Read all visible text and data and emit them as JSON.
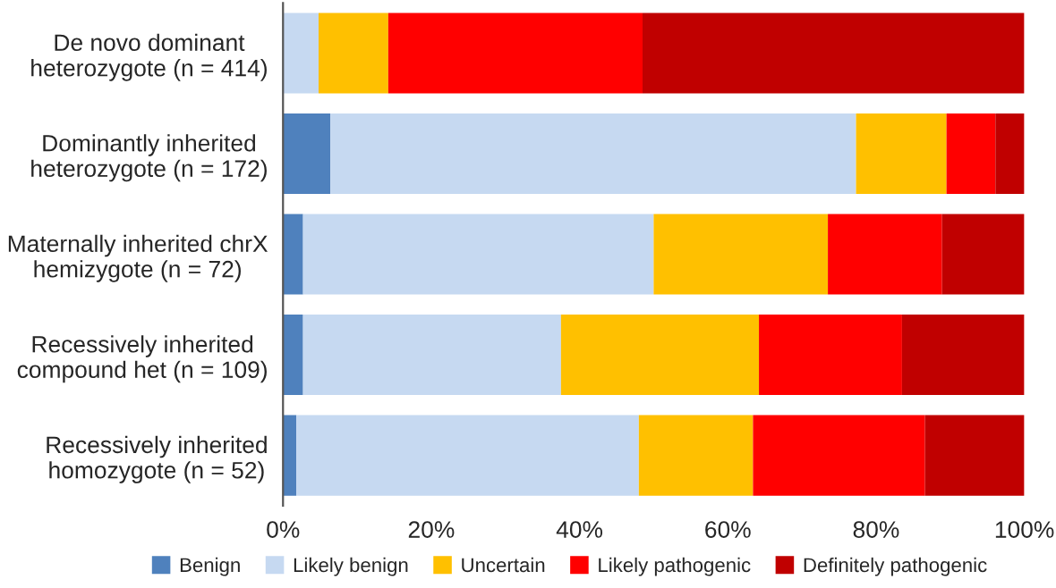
{
  "chart_data": {
    "type": "bar",
    "orientation": "horizontal",
    "stacked": true,
    "categories": [
      "De novo dominant\nheterozygote (n = 414)",
      "Dominantly inherited\nheterozygote (n = 172)",
      "Maternally inherited chrX\nhemizygote (n = 72)",
      "Recessively inherited\ncompound het (n = 109)",
      "Recessively inherited\nhomozygote (n = 52)"
    ],
    "series": [
      {
        "name": "Benign",
        "color": "#4f81bd",
        "values": [
          0,
          6.4,
          2.7,
          2.7,
          1.8
        ]
      },
      {
        "name": "Likely benign",
        "color": "#c6d9f1",
        "values": [
          4.8,
          70.9,
          47.3,
          34.8,
          46.2
        ]
      },
      {
        "name": "Uncertain",
        "color": "#ffc000",
        "values": [
          9.4,
          12.2,
          23.5,
          26.7,
          15.4
        ]
      },
      {
        "name": "Likely pathogenic",
        "color": "#ff0000",
        "values": [
          34.3,
          6.6,
          15.4,
          19.3,
          23.2
        ]
      },
      {
        "name": "Definitely pathogenic",
        "color": "#c00000",
        "values": [
          51.5,
          3.9,
          11.1,
          16.5,
          13.4
        ]
      }
    ],
    "xlim": [
      0,
      100
    ],
    "xticks": [
      {
        "value": 0,
        "label": "0%"
      },
      {
        "value": 20,
        "label": "20%"
      },
      {
        "value": 40,
        "label": "40%"
      },
      {
        "value": 60,
        "label": "60%"
      },
      {
        "value": 80,
        "label": "80%"
      },
      {
        "value": 100,
        "label": "100%"
      }
    ],
    "grid": false,
    "legend": "bottom"
  }
}
